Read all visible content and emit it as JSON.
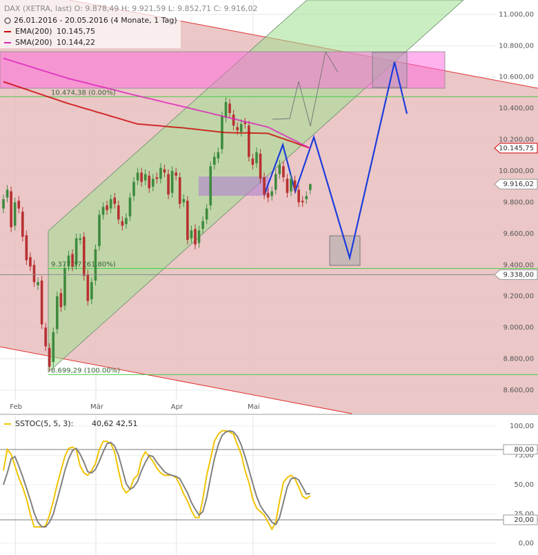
{
  "chart_data": [
    {
      "type": "candlestick",
      "legend_title": "DAX (XETRA, last)  O: 9.878,49  H: 9.921,59  L: 9.852,71  C: 9.916,02",
      "subtitle": "26.01.2016 - 20.05.2016 (4 Monate, 1 Tag)",
      "categories": [
        null,
        null,
        null,
        null,
        "Feb",
        null,
        null,
        null,
        null,
        null,
        null,
        null,
        null,
        null,
        null,
        null,
        null,
        null,
        null,
        null,
        null,
        null,
        null,
        null,
        null,
        "Mär",
        null,
        null,
        null,
        null,
        null,
        null,
        null,
        null,
        null,
        null,
        null,
        null,
        null,
        null,
        null,
        null,
        null,
        null,
        null,
        null,
        "Apr",
        null,
        null,
        null,
        null,
        null,
        null,
        null,
        null,
        null,
        null,
        null,
        null,
        null,
        null,
        null,
        null,
        null,
        null,
        null,
        "Mai",
        null,
        null,
        null,
        null,
        null,
        null,
        null,
        null,
        null,
        null,
        null,
        null,
        null,
        null
      ],
      "open": [
        9760,
        9830,
        9870,
        9650,
        9810,
        9740,
        9590,
        9450,
        9400,
        9270,
        9300,
        9000,
        8870,
        8780,
        8990,
        9220,
        9140,
        9390,
        9470,
        9400,
        9560,
        9580,
        9340,
        9180,
        9300,
        9520,
        9720,
        9780,
        9760,
        9830,
        9780,
        9680,
        9660,
        9710,
        9840,
        9940,
        9990,
        9940,
        9970,
        9900,
        9960,
        9950,
        10010,
        9980,
        9860,
        9990,
        9960,
        9800,
        9810,
        9570,
        9630,
        9540,
        9630,
        9690,
        9780,
        10040,
        10080,
        10140,
        10340,
        10430,
        10360,
        10280,
        10250,
        10310,
        10290,
        10080,
        10050,
        10110,
        9960,
        9860,
        9840,
        9880,
        9980,
        10030,
        9950,
        9870,
        9940,
        9880,
        9810,
        9820,
        9878.49
      ],
      "high": [
        9850,
        9910,
        9900,
        9830,
        9840,
        9770,
        9620,
        9480,
        9430,
        9320,
        9330,
        9030,
        8900,
        9000,
        9230,
        9250,
        9410,
        9490,
        9500,
        9600,
        9600,
        9610,
        9370,
        9320,
        9530,
        9750,
        9800,
        9810,
        9850,
        9860,
        9810,
        9710,
        9730,
        9860,
        9960,
        10020,
        10020,
        10010,
        10000,
        9980,
        9990,
        10050,
        10040,
        10010,
        10030,
        10020,
        9990,
        9850,
        9840,
        9650,
        9660,
        9650,
        9710,
        9790,
        10060,
        10120,
        10150,
        10380,
        10470,
        10460,
        10390,
        10310,
        10330,
        10340,
        10320,
        10110,
        10150,
        10140,
        9990,
        9890,
        9900,
        10010,
        10070,
        10060,
        9980,
        9980,
        9970,
        9910,
        9840,
        9870,
        9921.59
      ],
      "low": [
        9730,
        9800,
        9610,
        9620,
        9730,
        9550,
        9400,
        9360,
        9260,
        9240,
        8990,
        8850,
        8720,
        8750,
        8960,
        9100,
        9110,
        9360,
        9360,
        9370,
        9530,
        9300,
        9140,
        9150,
        9270,
        9490,
        9690,
        9720,
        9730,
        9760,
        9660,
        9620,
        9630,
        9680,
        9810,
        9910,
        9900,
        9910,
        9860,
        9870,
        9920,
        9920,
        9960,
        9820,
        9830,
        9940,
        9760,
        9770,
        9530,
        9540,
        9500,
        9510,
        9600,
        9660,
        9750,
        10010,
        10050,
        10110,
        10310,
        10340,
        10260,
        10230,
        10220,
        10270,
        10060,
        10010,
        10020,
        9920,
        9820,
        9800,
        9810,
        9850,
        9950,
        9930,
        9830,
        9840,
        9860,
        9770,
        9770,
        9790,
        9852.71
      ],
      "close": [
        9820,
        9880,
        9640,
        9800,
        9760,
        9580,
        9430,
        9390,
        9290,
        9290,
        9020,
        8880,
        8750,
        8970,
        9200,
        9130,
        9380,
        9460,
        9390,
        9570,
        9570,
        9330,
        9170,
        9290,
        9500,
        9720,
        9770,
        9750,
        9820,
        9790,
        9690,
        9650,
        9700,
        9830,
        9930,
        9990,
        9930,
        9980,
        9890,
        9950,
        9950,
        10020,
        9990,
        9850,
        10000,
        9970,
        9790,
        9820,
        9560,
        9620,
        9530,
        9620,
        9680,
        9760,
        10030,
        10090,
        10120,
        10350,
        10440,
        10370,
        10290,
        10260,
        10300,
        10300,
        10090,
        10040,
        10120,
        9950,
        9850,
        9830,
        9870,
        9980,
        10040,
        9960,
        9860,
        9950,
        9890,
        9800,
        9800,
        9840,
        9916.02
      ],
      "up_color": "#3d8a3d",
      "down_color": "#b83030",
      "overlays": [
        {
          "name": "EMA(200)",
          "legend_value": "10.145,75",
          "color": "#cc0000",
          "values": [
            10570,
            10562,
            10554,
            10545,
            10537,
            10529,
            10521,
            10512,
            10504,
            10496,
            10488,
            10479,
            10471,
            10463,
            10455,
            10446,
            10438,
            10430,
            10423,
            10416,
            10408,
            10401,
            10394,
            10387,
            10379,
            10372,
            10365,
            10358,
            10350,
            10343,
            10336,
            10329,
            10321,
            10314,
            10307,
            10300,
            10298,
            10296,
            10294,
            10292,
            10290,
            10288,
            10285,
            10283,
            10281,
            10279,
            10277,
            10275,
            10272,
            10270,
            10267,
            10264,
            10261,
            10259,
            10256,
            10253,
            10250,
            10248,
            10245,
            10245,
            10244,
            10244,
            10243,
            10243,
            10243,
            10242,
            10242,
            10241,
            10241,
            10240,
            10231,
            10223,
            10214,
            10206,
            10197,
            10189,
            10180,
            10171,
            10163,
            10154,
            10145.75
          ]
        },
        {
          "name": "SMA(200)",
          "legend_value": "10.144,22",
          "color": "#dd22bb",
          "values": [
            10720,
            10712,
            10705,
            10697,
            10689,
            10682,
            10674,
            10666,
            10659,
            10651,
            10643,
            10636,
            10628,
            10621,
            10613,
            10605,
            10598,
            10590,
            10584,
            10578,
            10572,
            10566,
            10560,
            10553,
            10547,
            10541,
            10535,
            10529,
            10523,
            10517,
            10511,
            10504,
            10498,
            10492,
            10486,
            10480,
            10474,
            10468,
            10463,
            10457,
            10451,
            10445,
            10439,
            10433,
            10428,
            10422,
            10416,
            10410,
            10404,
            10398,
            10392,
            10386,
            10380,
            10375,
            10369,
            10363,
            10357,
            10351,
            10345,
            10339,
            10333,
            10327,
            10321,
            10315,
            10310,
            10304,
            10298,
            10292,
            10286,
            10280,
            10268,
            10255,
            10243,
            10231,
            10218,
            10206,
            10194,
            10181,
            10169,
            10157,
            10144.22
          ]
        }
      ],
      "ylim": [
        8450,
        11092
      ],
      "yticks": [
        {
          "value": 8600,
          "label": "8.600,00"
        },
        {
          "value": 8800,
          "label": "8.800,00"
        },
        {
          "value": 9000,
          "label": "9.000,00"
        },
        {
          "value": 9200,
          "label": "9.200,00"
        },
        {
          "value": 9400,
          "label": "9.400,00"
        },
        {
          "value": 9600,
          "label": "9.600,00"
        },
        {
          "value": 9800,
          "label": "9.800,00"
        },
        {
          "value": 10000,
          "label": "10.000,00"
        },
        {
          "value": 10200,
          "label": "10.200,00"
        },
        {
          "value": 10400,
          "label": "10.400,00"
        },
        {
          "value": 10600,
          "label": "10.600,00"
        },
        {
          "value": 10800,
          "label": "10.800,00"
        },
        {
          "value": 11000,
          "label": "11.000,00"
        }
      ],
      "fib_levels": [
        {
          "value": 10474.38,
          "label": "10.474,38 (0.00%)"
        },
        {
          "value": 9377.37,
          "label": "9.377,37 (61.80%)"
        },
        {
          "value": 8699.29,
          "label": "8.699,29 (100.00%)"
        }
      ],
      "markers": [
        {
          "value": 10145.75,
          "label": "10.145,75",
          "color": "#cc0000",
          "line": false
        },
        {
          "value": 9916.02,
          "label": "9.916,02",
          "color": "#999999",
          "line": false
        },
        {
          "value": 9338,
          "label": "9.338,00",
          "color": "#999999",
          "line": true
        }
      ],
      "grid": true
    },
    {
      "type": "line",
      "legend_title": "SSTOC(5, 5, 3):",
      "series": [
        {
          "legend_value": "40,62",
          "color": "#f2c200",
          "values": [
            62,
            80,
            76,
            66,
            56,
            48,
            38,
            25,
            14,
            14,
            14,
            15,
            24,
            36,
            50,
            62,
            74,
            81,
            82,
            80,
            66,
            60,
            58,
            62,
            68,
            80,
            87,
            87,
            85,
            78,
            62,
            48,
            43,
            46,
            55,
            58,
            72,
            78,
            74,
            70,
            64,
            60,
            58,
            58,
            58,
            56,
            50,
            42,
            36,
            28,
            22,
            22,
            38,
            58,
            72,
            87,
            93,
            96,
            96,
            95,
            93,
            84,
            76,
            62,
            52,
            38,
            30,
            27,
            24,
            18,
            12,
            18,
            36,
            52,
            56,
            58,
            55,
            48,
            40,
            38,
            40.62
          ]
        },
        {
          "legend_value": "42,51",
          "color": "#808080",
          "values": [
            50,
            60,
            72,
            74,
            66,
            57,
            47,
            37,
            26,
            18,
            14,
            14,
            18,
            25,
            37,
            49,
            62,
            72,
            79,
            81,
            76,
            69,
            61,
            60,
            63,
            70,
            78,
            85,
            86,
            83,
            75,
            63,
            51,
            46,
            48,
            53,
            62,
            69,
            75,
            74,
            69,
            65,
            61,
            59,
            58,
            57,
            55,
            49,
            43,
            35,
            29,
            24,
            27,
            39,
            56,
            72,
            84,
            92,
            95,
            96,
            95,
            91,
            84,
            74,
            63,
            51,
            40,
            32,
            27,
            23,
            18,
            16,
            22,
            35,
            48,
            55,
            56,
            54,
            48,
            42,
            42.51
          ]
        }
      ],
      "ylim": [
        -10,
        108.8
      ],
      "yticks": [
        {
          "value": 0,
          "label": "0,00"
        },
        {
          "value": 25,
          "label": "25,00"
        },
        {
          "value": 50,
          "label": "50,00"
        },
        {
          "value": 75,
          "label": "75,00"
        },
        {
          "value": 100,
          "label": "100,00"
        }
      ],
      "levels": [
        {
          "value": 80,
          "label": "80,00"
        },
        {
          "value": 20,
          "label": "20,00"
        }
      ],
      "grid": true
    }
  ]
}
